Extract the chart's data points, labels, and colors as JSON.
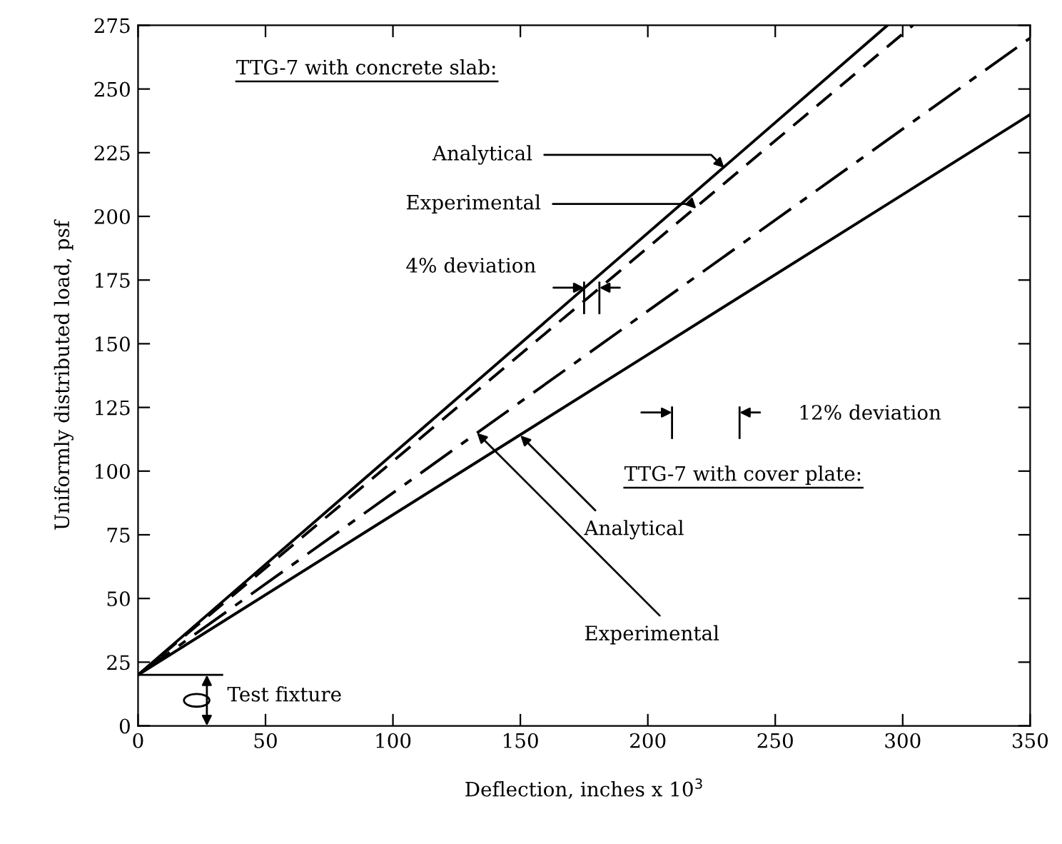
{
  "chart_data": {
    "type": "line",
    "xlabel": "Deflection, inches x 10$^{3}$",
    "ylabel": "Uniformly distributed load, psf",
    "xlim": [
      0,
      350
    ],
    "ylim": [
      0,
      275
    ],
    "xticks": [
      0,
      50,
      100,
      150,
      200,
      250,
      300,
      350
    ],
    "yticks": [
      0,
      25,
      50,
      75,
      100,
      125,
      150,
      175,
      200,
      225,
      250,
      275
    ],
    "grid": false,
    "legend": false,
    "marker": "none",
    "series": [
      {
        "color": "#000000",
        "line_style": "solid",
        "x": [
          0,
          294
        ],
        "values": [
          20,
          275
        ]
      },
      {
        "color": "#000000",
        "line_style": "dashed",
        "x": [
          0,
          304
        ],
        "values": [
          20,
          275
        ]
      },
      {
        "color": "#000000",
        "line_style": "dashdot",
        "x": [
          0,
          350
        ],
        "values": [
          20,
          270
        ]
      },
      {
        "color": "#000000",
        "line_style": "solid",
        "x": [
          0,
          350
        ],
        "values": [
          20,
          240
        ]
      }
    ],
    "annotations": [
      "TTG-7 with concrete slab:",
      {
        "text": "Analytical",
        "x": 230,
        "y": 219
      },
      {
        "text": "Experimental",
        "x": 219,
        "y": 203
      },
      "4% deviation",
      "12% deviation",
      "TTG-7 with cover plate:",
      {
        "text": "Analytical",
        "x": 150,
        "y": 114
      },
      {
        "text": "Experimental",
        "x": 133,
        "y": 115
      },
      {
        "text": "Test fixture",
        "x": 0,
        "y": 20
      }
    ]
  }
}
